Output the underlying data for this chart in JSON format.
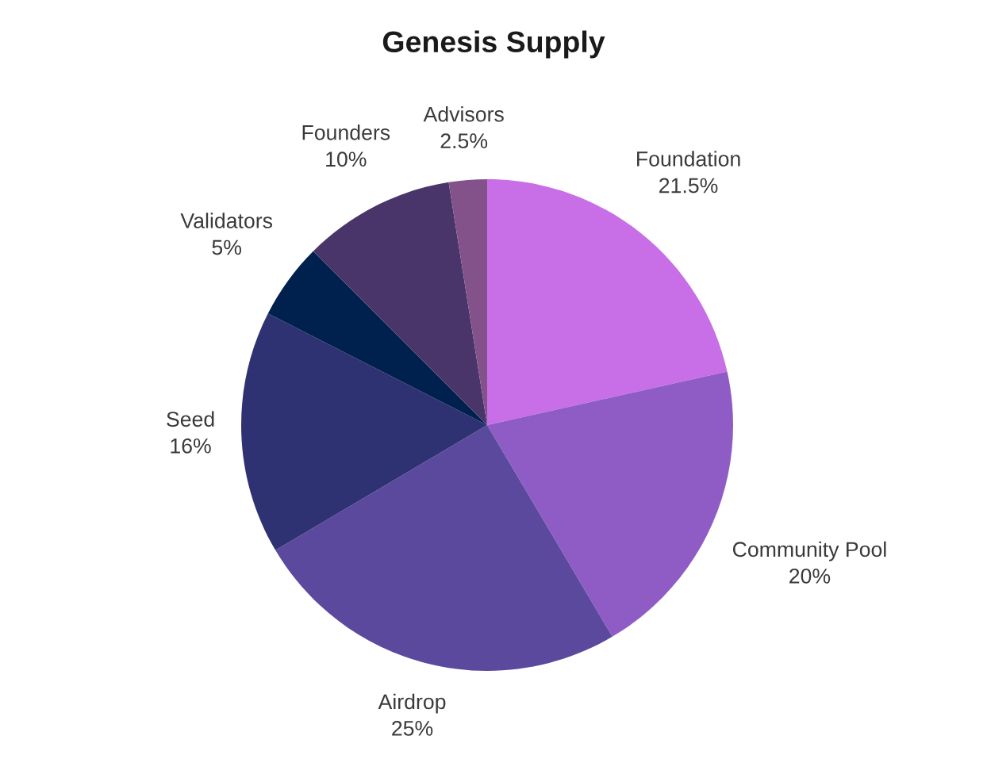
{
  "chart_data": {
    "type": "pie",
    "title": "Genesis Supply",
    "categories": [
      "Foundation",
      "Community Pool",
      "Airdrop",
      "Seed",
      "Validators",
      "Founders",
      "Advisors"
    ],
    "values": [
      21.5,
      20,
      25,
      16,
      5,
      10,
      2.5
    ],
    "value_labels": [
      "21.5%",
      "20%",
      "25%",
      "16%",
      "5%",
      "10%",
      "2.5%"
    ],
    "colors": [
      "#c86ee6",
      "#8f5cc6",
      "#5b499e",
      "#2e3272",
      "#00204e",
      "#4a356b",
      "#83528a"
    ]
  }
}
